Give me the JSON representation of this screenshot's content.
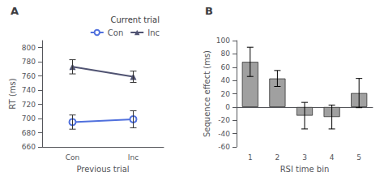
{
  "chart_data": [
    {
      "type": "line",
      "title": "A",
      "xlabel": "Previous trial",
      "ylabel": "RT (ms)",
      "categories": [
        "Con",
        "Inc"
      ],
      "series": [
        {
          "name": "Con",
          "values": [
            695,
            699
          ],
          "yerr": [
            10,
            12
          ],
          "marker": "open_circle"
        },
        {
          "name": "Inc",
          "values": [
            773,
            759
          ],
          "yerr": [
            10,
            8
          ],
          "marker": "triangle"
        }
      ],
      "legend_title": "Current trial",
      "legend": "upper right",
      "ylim": [
        660,
        810
      ],
      "yticks": [
        660,
        680,
        700,
        720,
        740,
        760,
        780,
        800
      ],
      "grid": false
    },
    {
      "type": "bar",
      "title": "B",
      "xlabel": "RSI time bin",
      "ylabel": "Sequence effect (ms)",
      "categories": [
        "1",
        "2",
        "3",
        "4",
        "5"
      ],
      "values": [
        68,
        43,
        -13,
        -15,
        21
      ],
      "yerr": [
        22,
        12,
        20,
        18,
        22
      ],
      "color": "#a0a0a0",
      "ylim": [
        -60,
        100
      ],
      "yticks": [
        -60,
        -40,
        -20,
        0,
        20,
        40,
        60,
        80,
        100
      ],
      "grid": false
    }
  ]
}
